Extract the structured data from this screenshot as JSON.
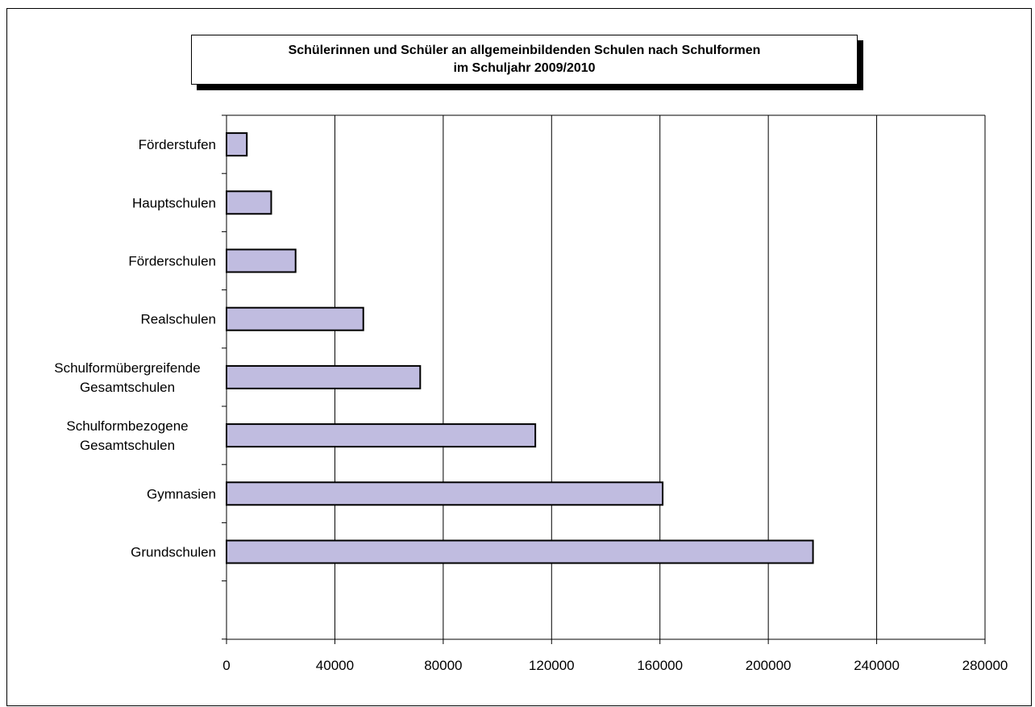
{
  "chart_data": {
    "type": "bar",
    "orientation": "horizontal",
    "title_lines": [
      "Schülerinnen und Schüler an allgemeinbildenden Schulen nach Schulformen",
      "im Schuljahr 2009/2010"
    ],
    "categories": [
      [
        "Förderstufen"
      ],
      [
        "Hauptschulen"
      ],
      [
        "Förderschulen"
      ],
      [
        "Realschulen"
      ],
      [
        "Schulformübergreifende",
        "Gesamtschulen"
      ],
      [
        "Schulformbezogene",
        "Gesamtschulen"
      ],
      [
        "Gymnasien"
      ],
      [
        "Grundschulen"
      ]
    ],
    "values": [
      7500,
      16500,
      25500,
      50500,
      71500,
      114000,
      161000,
      216500
    ],
    "xlim": [
      0,
      280000
    ],
    "xticks": [
      "0",
      "40000",
      "80000",
      "120000",
      "160000",
      "200000",
      "240000",
      "280000"
    ],
    "xtick_values": [
      0,
      40000,
      80000,
      120000,
      160000,
      200000,
      240000,
      280000
    ],
    "grid": "vertical",
    "legend": "none",
    "bar_color": "#c0bce0",
    "bar_edge_color": "#000000"
  }
}
